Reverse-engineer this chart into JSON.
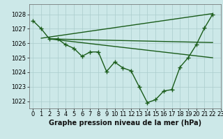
{
  "title": "Graphe pression niveau de la mer (hPa)",
  "bg_color": "#cce8e8",
  "grid_color": "#aacccc",
  "line_color": "#1a5c1a",
  "xlim": [
    -0.5,
    23
  ],
  "ylim": [
    1021.5,
    1028.7
  ],
  "yticks": [
    1022,
    1023,
    1024,
    1025,
    1026,
    1027,
    1028
  ],
  "xticks": [
    0,
    1,
    2,
    3,
    4,
    5,
    6,
    7,
    8,
    9,
    10,
    11,
    12,
    13,
    14,
    15,
    16,
    17,
    18,
    19,
    20,
    21,
    22,
    23
  ],
  "series": [
    [
      0,
      1027.55
    ],
    [
      1,
      1027.0
    ],
    [
      2,
      1026.3
    ],
    [
      3,
      1026.3
    ],
    [
      4,
      1025.9
    ],
    [
      5,
      1025.65
    ],
    [
      6,
      1025.1
    ],
    [
      7,
      1025.4
    ],
    [
      8,
      1025.4
    ],
    [
      9,
      1024.05
    ],
    [
      10,
      1024.7
    ],
    [
      11,
      1024.3
    ],
    [
      12,
      1024.1
    ],
    [
      13,
      1023.0
    ],
    [
      14,
      1021.9
    ],
    [
      15,
      1022.1
    ],
    [
      16,
      1022.7
    ],
    [
      17,
      1022.8
    ],
    [
      18,
      1024.35
    ],
    [
      19,
      1025.0
    ],
    [
      20,
      1025.9
    ],
    [
      21,
      1027.05
    ],
    [
      22,
      1028.0
    ]
  ],
  "fan_lines": [
    {
      "x": [
        1,
        22
      ],
      "y": [
        1026.35,
        1028.05
      ]
    },
    {
      "x": [
        2,
        22
      ],
      "y": [
        1026.3,
        1026.05
      ]
    },
    {
      "x": [
        2,
        22
      ],
      "y": [
        1026.3,
        1025.0
      ]
    }
  ],
  "marker_size": 4,
  "linewidth": 1.0,
  "tick_fontsize": 6,
  "title_fontsize": 7,
  "title_fontweight": "bold"
}
